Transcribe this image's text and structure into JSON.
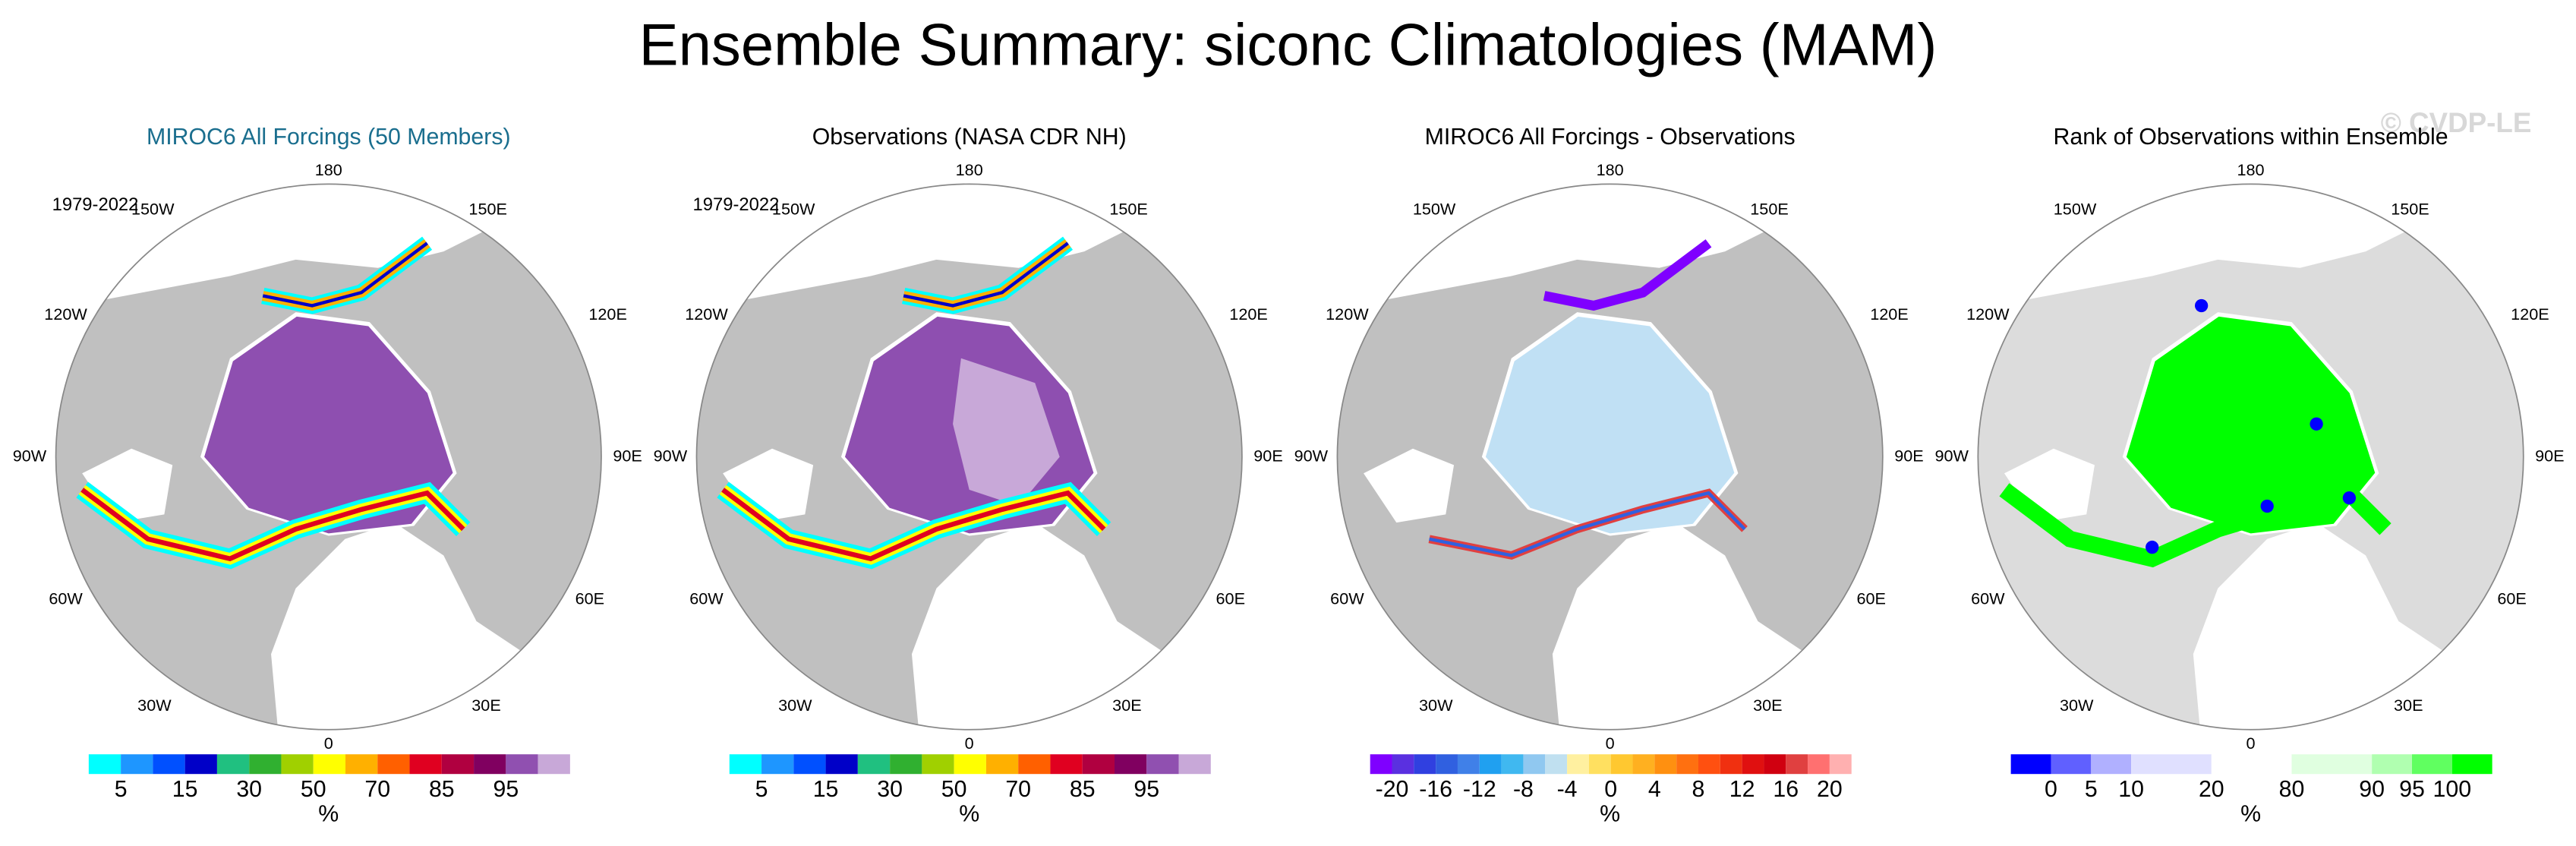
{
  "title": "Ensemble Summary: siconc Climatologies (MAM)",
  "watermark": "© CVDP-LE",
  "longitude_labels": [
    "180",
    "150W",
    "150E",
    "120W",
    "120E",
    "90W",
    "90E",
    "60W",
    "60E",
    "30W",
    "30E",
    "0"
  ],
  "panels": [
    {
      "title": "MIROC6 All Forcings (50 Members)",
      "period": "1979-2022",
      "colorbar": {
        "colors": [
          "#00ffff",
          "#1e96ff",
          "#0050ff",
          "#0000c8",
          "#20c080",
          "#30b030",
          "#a0d000",
          "#ffff00",
          "#ffb000",
          "#ff6000",
          "#e00020",
          "#b00040",
          "#800060",
          "#9050b0",
          "#c8a8d8"
        ],
        "labels": [
          "5",
          "15",
          "30",
          "50",
          "70",
          "85",
          "95"
        ],
        "unit": "%"
      }
    },
    {
      "title": "Observations (NASA CDR NH)",
      "period": "1979-2022",
      "colorbar": {
        "colors": [
          "#00ffff",
          "#1e96ff",
          "#0050ff",
          "#0000c8",
          "#20c080",
          "#30b030",
          "#a0d000",
          "#ffff00",
          "#ffb000",
          "#ff6000",
          "#e00020",
          "#b00040",
          "#800060",
          "#9050b0",
          "#c8a8d8"
        ],
        "labels": [
          "5",
          "15",
          "30",
          "50",
          "70",
          "85",
          "95"
        ],
        "unit": "%"
      }
    },
    {
      "title": "MIROC6 All Forcings - Observations",
      "colorbar": {
        "colors": [
          "#7f00ff",
          "#5a30e0",
          "#3040e0",
          "#3060e0",
          "#4080e8",
          "#20a0f0",
          "#40b8f0",
          "#90c8f0",
          "#c0e0f0",
          "#fff0a0",
          "#ffe060",
          "#ffc830",
          "#ffb020",
          "#ff9010",
          "#ff7010",
          "#ff5010",
          "#f03010",
          "#e01010",
          "#d00010",
          "#e04040",
          "#ff7070",
          "#ffb0b0"
        ],
        "labels": [
          "-20",
          "-16",
          "-12",
          "-8",
          "-4",
          "0",
          "4",
          "8",
          "12",
          "16",
          "20"
        ],
        "unit": "%"
      }
    },
    {
      "title": "Rank of Observations within Ensemble",
      "colorbar": {
        "colors": [
          "#0000ff",
          "#6060ff",
          "#b0b0ff",
          "#e0e0ff",
          "#ffffff",
          "#e0ffe0",
          "#b0ffb0",
          "#60ff60",
          "#00ff00"
        ],
        "labels": [
          "0",
          "5",
          "10",
          "20",
          "80",
          "90",
          "95",
          "100"
        ],
        "unit": "%"
      }
    }
  ]
}
